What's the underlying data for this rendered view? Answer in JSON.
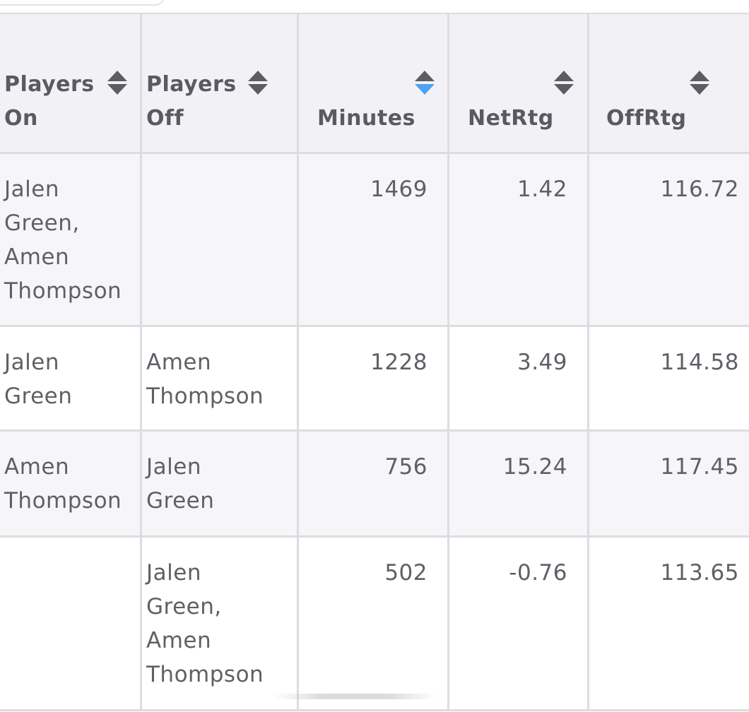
{
  "colors": {
    "sort_active": "#4aa3f5",
    "sort_inactive": "#5c5c63",
    "header_bg": "#f2f2f6",
    "border": "#dcdce1",
    "text": "#5f5f66"
  },
  "table": {
    "columns": [
      {
        "label": "Players\nOn",
        "sort_state": "none",
        "icon": "sort-icon"
      },
      {
        "label": "Players\nOff",
        "sort_state": "none",
        "icon": "sort-icon"
      },
      {
        "label": "Minutes",
        "sort_state": "descending",
        "icon": "sort-descending-icon"
      },
      {
        "label": "NetRtg",
        "sort_state": "none",
        "icon": "sort-icon"
      },
      {
        "label": "OffRtg",
        "sort_state": "none",
        "icon": "sort-icon"
      }
    ],
    "rows": [
      {
        "players_on": "Jalen\nGreen,\nAmen\nThompson",
        "players_off": "",
        "minutes": "1469",
        "net_rtg": "1.42",
        "off_rtg": "116.72"
      },
      {
        "players_on": "Jalen\nGreen",
        "players_off": "Amen\nThompson",
        "minutes": "1228",
        "net_rtg": "3.49",
        "off_rtg": "114.58"
      },
      {
        "players_on": "Amen\nThompson",
        "players_off": "Jalen\nGreen",
        "minutes": "756",
        "net_rtg": "15.24",
        "off_rtg": "117.45"
      },
      {
        "players_on": "",
        "players_off": "Jalen\nGreen,\nAmen\nThompson",
        "minutes": "502",
        "net_rtg": "-0.76",
        "off_rtg": "113.65"
      }
    ]
  }
}
